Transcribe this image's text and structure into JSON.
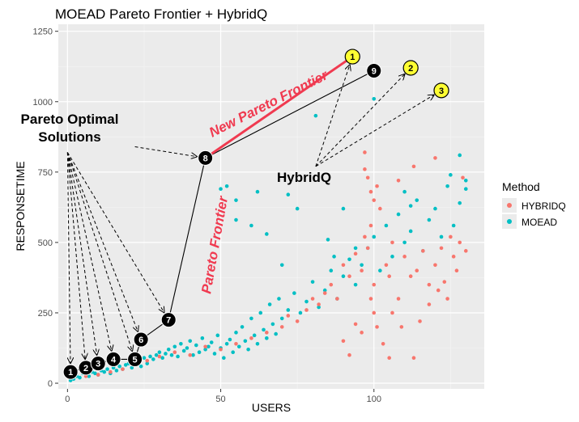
{
  "chart_data": {
    "type": "scatter",
    "title": "MOEAD Pareto Frontier + HybridQ",
    "xlabel": "USERS",
    "ylabel": "RESPONSETIME",
    "xlim": [
      -3,
      136
    ],
    "ylim": [
      -20,
      1275
    ],
    "x_ticks": [
      0,
      50,
      100
    ],
    "y_ticks": [
      0,
      250,
      500,
      750,
      1000,
      1250
    ],
    "grid": true,
    "legend": {
      "title": "Method",
      "placement": "right",
      "entries": [
        {
          "name": "HYBRIDQ",
          "color": "#F8766D"
        },
        {
          "name": "MOEAD",
          "color": "#00BFC4"
        }
      ]
    },
    "series": [
      {
        "name": "MOEAD",
        "color": "#00BFC4",
        "points": [
          [
            1,
            10
          ],
          [
            2,
            15
          ],
          [
            3,
            25
          ],
          [
            4,
            20
          ],
          [
            5,
            35
          ],
          [
            6,
            30
          ],
          [
            7,
            25
          ],
          [
            8,
            40
          ],
          [
            9,
            35
          ],
          [
            10,
            30
          ],
          [
            11,
            45
          ],
          [
            12,
            40
          ],
          [
            13,
            50
          ],
          [
            14,
            35
          ],
          [
            15,
            55
          ],
          [
            16,
            45
          ],
          [
            17,
            60
          ],
          [
            18,
            50
          ],
          [
            19,
            65
          ],
          [
            20,
            70
          ],
          [
            21,
            55
          ],
          [
            22,
            75
          ],
          [
            23,
            80
          ],
          [
            24,
            60
          ],
          [
            25,
            90
          ],
          [
            26,
            70
          ],
          [
            27,
            95
          ],
          [
            28,
            85
          ],
          [
            29,
            100
          ],
          [
            30,
            110
          ],
          [
            31,
            90
          ],
          [
            32,
            105
          ],
          [
            33,
            120
          ],
          [
            34,
            100
          ],
          [
            35,
            130
          ],
          [
            36,
            95
          ],
          [
            37,
            140
          ],
          [
            38,
            115
          ],
          [
            39,
            125
          ],
          [
            40,
            150
          ],
          [
            41,
            100
          ],
          [
            42,
            135
          ],
          [
            43,
            110
          ],
          [
            44,
            160
          ],
          [
            45,
            120
          ],
          [
            46,
            130
          ],
          [
            47,
            145
          ],
          [
            48,
            105
          ],
          [
            49,
            170
          ],
          [
            50,
            125
          ],
          [
            51,
            90
          ],
          [
            52,
            140
          ],
          [
            53,
            155
          ],
          [
            54,
            110
          ],
          [
            55,
            180
          ],
          [
            56,
            130
          ],
          [
            57,
            200
          ],
          [
            58,
            150
          ],
          [
            59,
            120
          ],
          [
            60,
            230
          ],
          [
            61,
            170
          ],
          [
            62,
            140
          ],
          [
            63,
            250
          ],
          [
            64,
            190
          ],
          [
            65,
            160
          ],
          [
            66,
            280
          ],
          [
            67,
            210
          ],
          [
            68,
            175
          ],
          [
            69,
            300
          ],
          [
            70,
            230
          ],
          [
            72,
            260
          ],
          [
            74,
            320
          ],
          [
            76,
            250
          ],
          [
            78,
            290
          ],
          [
            80,
            360
          ],
          [
            82,
            270
          ],
          [
            84,
            330
          ],
          [
            86,
            400
          ],
          [
            88,
            300
          ],
          [
            90,
            380
          ],
          [
            92,
            440
          ],
          [
            94,
            350
          ],
          [
            96,
            420
          ],
          [
            98,
            480
          ],
          [
            100,
            520
          ],
          [
            102,
            400
          ],
          [
            104,
            560
          ],
          [
            106,
            450
          ],
          [
            108,
            600
          ],
          [
            110,
            500
          ],
          [
            112,
            540
          ],
          [
            114,
            650
          ],
          [
            116,
            470
          ],
          [
            118,
            580
          ],
          [
            120,
            620
          ],
          [
            122,
            520
          ],
          [
            124,
            700
          ],
          [
            126,
            560
          ],
          [
            128,
            640
          ],
          [
            130,
            720
          ],
          [
            50,
            690
          ],
          [
            52,
            700
          ],
          [
            55,
            650
          ],
          [
            62,
            680
          ],
          [
            72,
            670
          ],
          [
            75,
            620
          ],
          [
            90,
            620
          ],
          [
            94,
            480
          ],
          [
            100,
            1010
          ],
          [
            110,
            680
          ],
          [
            112,
            630
          ],
          [
            125,
            740
          ],
          [
            128,
            810
          ],
          [
            130,
            690
          ],
          [
            81,
            950
          ],
          [
            55,
            580
          ],
          [
            60,
            560
          ],
          [
            65,
            530
          ],
          [
            70,
            420
          ],
          [
            85,
            510
          ],
          [
            87,
            450
          ]
        ]
      },
      {
        "name": "HYBRIDQ",
        "color": "#F8766D",
        "points": [
          [
            6,
            25
          ],
          [
            10,
            30
          ],
          [
            14,
            40
          ],
          [
            18,
            50
          ],
          [
            22,
            70
          ],
          [
            26,
            80
          ],
          [
            30,
            95
          ],
          [
            35,
            110
          ],
          [
            40,
            100
          ],
          [
            45,
            130
          ],
          [
            50,
            120
          ],
          [
            55,
            140
          ],
          [
            60,
            160
          ],
          [
            65,
            180
          ],
          [
            70,
            200
          ],
          [
            72,
            240
          ],
          [
            75,
            220
          ],
          [
            78,
            260
          ],
          [
            80,
            300
          ],
          [
            82,
            280
          ],
          [
            84,
            320
          ],
          [
            86,
            350
          ],
          [
            88,
            300
          ],
          [
            90,
            420
          ],
          [
            92,
            380
          ],
          [
            94,
            460
          ],
          [
            96,
            400
          ],
          [
            97,
            520
          ],
          [
            98,
            480
          ],
          [
            99,
            300
          ],
          [
            99,
            560
          ],
          [
            100,
            250
          ],
          [
            100,
            650
          ],
          [
            100,
            350
          ],
          [
            101,
            200
          ],
          [
            101,
            700
          ],
          [
            102,
            620
          ],
          [
            104,
            420
          ],
          [
            105,
            380
          ],
          [
            106,
            500
          ],
          [
            108,
            300
          ],
          [
            110,
            450
          ],
          [
            112,
            380
          ],
          [
            114,
            400
          ],
          [
            116,
            470
          ],
          [
            118,
            350
          ],
          [
            120,
            420
          ],
          [
            122,
            480
          ],
          [
            124,
            300
          ],
          [
            125,
            520
          ],
          [
            126,
            450
          ],
          [
            128,
            500
          ],
          [
            130,
            470
          ],
          [
            97,
            820
          ],
          [
            97,
            760
          ],
          [
            98,
            730
          ],
          [
            99,
            680
          ],
          [
            108,
            720
          ],
          [
            113,
            770
          ],
          [
            120,
            800
          ],
          [
            129,
            730
          ],
          [
            103,
            140
          ],
          [
            105,
            90
          ],
          [
            90,
            150
          ],
          [
            92,
            100
          ],
          [
            94,
            210
          ],
          [
            96,
            180
          ],
          [
            106,
            250
          ],
          [
            109,
            200
          ],
          [
            115,
            220
          ],
          [
            118,
            280
          ],
          [
            121,
            330
          ],
          [
            123,
            360
          ],
          [
            127,
            400
          ],
          [
            113,
            90
          ]
        ]
      }
    ],
    "pareto_points": [
      {
        "label": "1",
        "x": 1,
        "y": 40
      },
      {
        "label": "2",
        "x": 6,
        "y": 55
      },
      {
        "label": "3",
        "x": 10,
        "y": 70
      },
      {
        "label": "4",
        "x": 15,
        "y": 85
      },
      {
        "label": "5",
        "x": 22,
        "y": 85
      },
      {
        "label": "6",
        "x": 24,
        "y": 155
      },
      {
        "label": "7",
        "x": 33,
        "y": 225
      },
      {
        "label": "8",
        "x": 45,
        "y": 800
      },
      {
        "label": "9",
        "x": 100,
        "y": 1110
      }
    ],
    "hybridq_points": [
      {
        "label": "1",
        "x": 93,
        "y": 1160
      },
      {
        "label": "2",
        "x": 112,
        "y": 1120
      },
      {
        "label": "3",
        "x": 122,
        "y": 1040
      }
    ],
    "annotations": {
      "pareto_optimal": [
        "Pareto Optimal",
        "Solutions"
      ],
      "hybridq": "HybridQ",
      "new_frontier": "New Pareto Frontier",
      "pareto_frontier": "Pareto Frontier",
      "pareto_fan_origin": {
        "x": 0,
        "y": 820
      },
      "hybridq_fan_origin": {
        "x": 81,
        "y": 770
      },
      "arrow8_origin": {
        "x": 22,
        "y": 840
      }
    }
  }
}
